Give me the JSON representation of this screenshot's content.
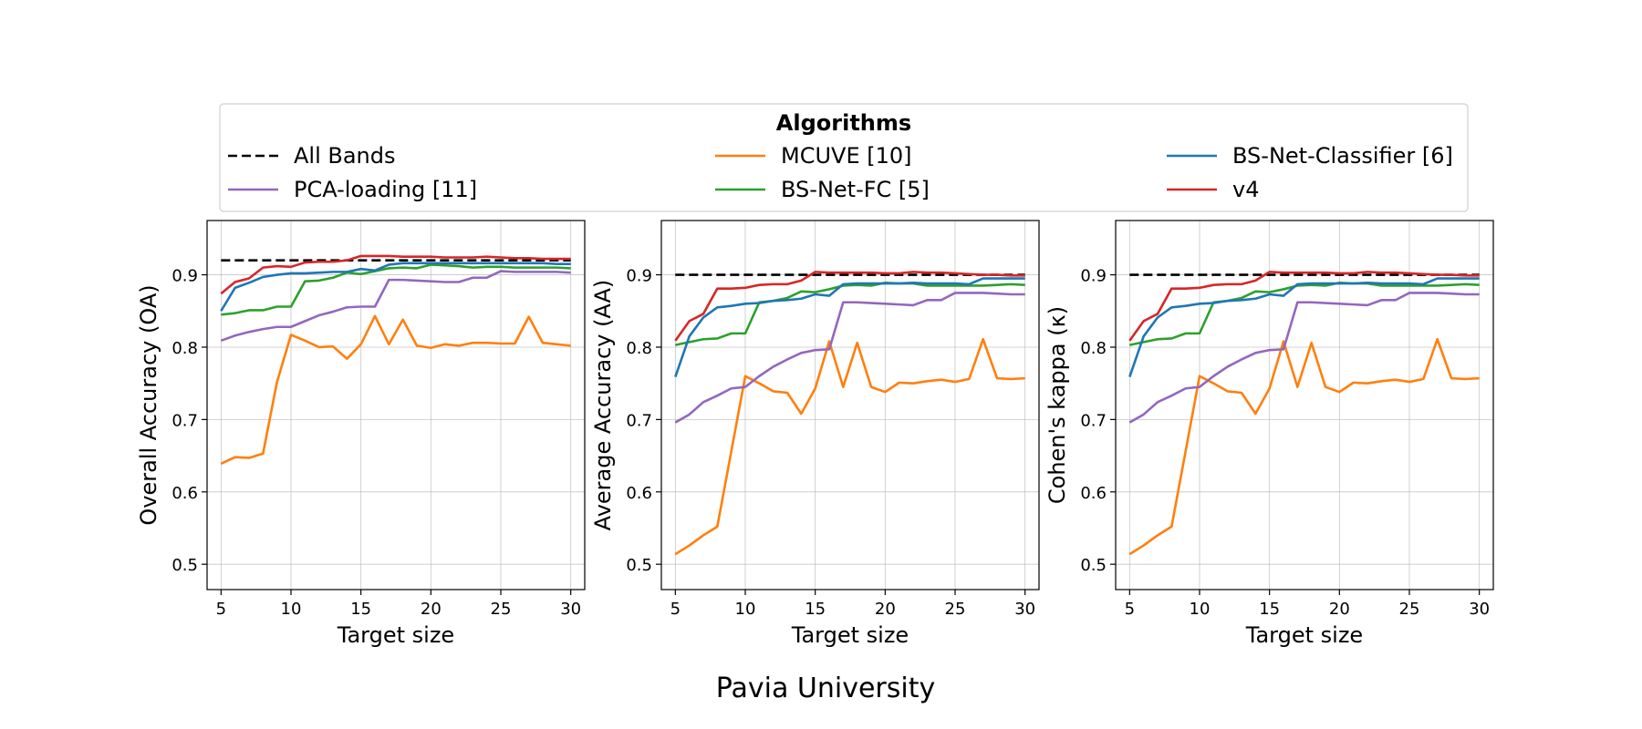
{
  "figure": {
    "suptitle": "Pavia University",
    "legend": {
      "title": "Algorithms",
      "entries": [
        {
          "name": "All Bands",
          "color": "#000000",
          "dashed": true
        },
        {
          "name": "MCUVE [10]",
          "color": "#ff7f0e",
          "dashed": false
        },
        {
          "name": "BS-Net-Classifier [6]",
          "color": "#1f77b4",
          "dashed": false
        },
        {
          "name": "PCA-loading [11]",
          "color": "#9467bd",
          "dashed": false
        },
        {
          "name": "BS-Net-FC [5]",
          "color": "#2ca02c",
          "dashed": false
        },
        {
          "name": "v4",
          "color": "#d62728",
          "dashed": false
        }
      ]
    }
  },
  "chart_data": [
    {
      "type": "line",
      "xlabel": "Target size",
      "ylabel": "Overall Accuracy (OA)",
      "xlim": [
        4,
        31
      ],
      "ylim": [
        0.465,
        0.975
      ],
      "xticks": [
        5,
        10,
        15,
        20,
        25,
        30
      ],
      "yticks": [
        0.5,
        0.6,
        0.7,
        0.8,
        0.9
      ],
      "grid": true,
      "x": [
        5,
        6,
        7,
        8,
        9,
        10,
        11,
        12,
        13,
        14,
        15,
        16,
        17,
        18,
        19,
        20,
        21,
        22,
        23,
        24,
        25,
        26,
        27,
        28,
        29,
        30
      ],
      "series": [
        {
          "name": "All Bands",
          "color": "#000000",
          "dashed": true,
          "values": [
            0.92,
            0.92,
            0.92,
            0.92,
            0.92,
            0.92,
            0.92,
            0.92,
            0.92,
            0.92,
            0.92,
            0.92,
            0.92,
            0.92,
            0.92,
            0.92,
            0.92,
            0.92,
            0.92,
            0.92,
            0.92,
            0.92,
            0.92,
            0.92,
            0.92,
            0.92
          ]
        },
        {
          "name": "MCUVE [10]",
          "color": "#ff7f0e",
          "values": [
            0.639,
            0.648,
            0.647,
            0.653,
            0.752,
            0.817,
            0.809,
            0.8,
            0.801,
            0.784,
            0.804,
            0.843,
            0.804,
            0.838,
            0.802,
            0.799,
            0.804,
            0.802,
            0.806,
            0.806,
            0.805,
            0.805,
            0.842,
            0.806,
            0.804,
            0.802
          ]
        },
        {
          "name": "PCA-loading [11]",
          "color": "#9467bd",
          "values": [
            0.809,
            0.816,
            0.821,
            0.825,
            0.828,
            0.828,
            0.836,
            0.844,
            0.849,
            0.855,
            0.856,
            0.856,
            0.893,
            0.893,
            0.892,
            0.891,
            0.89,
            0.89,
            0.896,
            0.896,
            0.905,
            0.904,
            0.904,
            0.904,
            0.904,
            0.903
          ]
        },
        {
          "name": "BS-Net-FC [5]",
          "color": "#2ca02c",
          "values": [
            0.845,
            0.847,
            0.851,
            0.851,
            0.856,
            0.856,
            0.891,
            0.892,
            0.896,
            0.903,
            0.901,
            0.905,
            0.909,
            0.91,
            0.909,
            0.914,
            0.913,
            0.912,
            0.91,
            0.911,
            0.911,
            0.91,
            0.91,
            0.91,
            0.91,
            0.909
          ]
        },
        {
          "name": "BS-Net-Classifier [6]",
          "color": "#1f77b4",
          "values": [
            0.85,
            0.882,
            0.889,
            0.897,
            0.9,
            0.902,
            0.902,
            0.903,
            0.904,
            0.904,
            0.908,
            0.906,
            0.914,
            0.916,
            0.916,
            0.916,
            0.916,
            0.916,
            0.916,
            0.916,
            0.916,
            0.916,
            0.916,
            0.916,
            0.915,
            0.915
          ]
        },
        {
          "name": "v4",
          "color": "#d62728",
          "values": [
            0.874,
            0.89,
            0.895,
            0.91,
            0.912,
            0.911,
            0.917,
            0.918,
            0.918,
            0.92,
            0.926,
            0.926,
            0.926,
            0.925,
            0.925,
            0.925,
            0.924,
            0.924,
            0.924,
            0.925,
            0.924,
            0.923,
            0.923,
            0.922,
            0.922,
            0.922
          ]
        }
      ]
    },
    {
      "type": "line",
      "xlabel": "Target size",
      "ylabel": "Average Accuracy (AA)",
      "xlim": [
        4,
        31
      ],
      "ylim": [
        0.465,
        0.975
      ],
      "xticks": [
        5,
        10,
        15,
        20,
        25,
        30
      ],
      "yticks": [
        0.5,
        0.6,
        0.7,
        0.8,
        0.9
      ],
      "grid": true,
      "x": [
        5,
        6,
        7,
        8,
        9,
        10,
        11,
        12,
        13,
        14,
        15,
        16,
        17,
        18,
        19,
        20,
        21,
        22,
        23,
        24,
        25,
        26,
        27,
        28,
        29,
        30
      ],
      "series": [
        {
          "name": "All Bands",
          "color": "#000000",
          "dashed": true,
          "values": [
            0.9,
            0.9,
            0.9,
            0.9,
            0.9,
            0.9,
            0.9,
            0.9,
            0.9,
            0.9,
            0.9,
            0.9,
            0.9,
            0.9,
            0.9,
            0.9,
            0.9,
            0.9,
            0.9,
            0.9,
            0.9,
            0.9,
            0.9,
            0.9,
            0.9,
            0.9
          ]
        },
        {
          "name": "MCUVE [10]",
          "color": "#ff7f0e",
          "values": [
            0.514,
            0.526,
            0.54,
            0.552,
            0.656,
            0.76,
            0.75,
            0.739,
            0.737,
            0.708,
            0.743,
            0.808,
            0.745,
            0.806,
            0.745,
            0.738,
            0.751,
            0.75,
            0.753,
            0.755,
            0.752,
            0.756,
            0.811,
            0.757,
            0.756,
            0.757
          ]
        },
        {
          "name": "PCA-loading [11]",
          "color": "#9467bd",
          "values": [
            0.696,
            0.707,
            0.724,
            0.733,
            0.743,
            0.745,
            0.76,
            0.773,
            0.783,
            0.792,
            0.796,
            0.797,
            0.862,
            0.862,
            0.861,
            0.86,
            0.859,
            0.858,
            0.865,
            0.865,
            0.875,
            0.875,
            0.875,
            0.874,
            0.873,
            0.873
          ]
        },
        {
          "name": "BS-Net-FC [5]",
          "color": "#2ca02c",
          "values": [
            0.803,
            0.807,
            0.811,
            0.812,
            0.819,
            0.819,
            0.862,
            0.864,
            0.868,
            0.877,
            0.876,
            0.88,
            0.885,
            0.886,
            0.885,
            0.889,
            0.888,
            0.888,
            0.885,
            0.885,
            0.885,
            0.885,
            0.885,
            0.886,
            0.887,
            0.886
          ]
        },
        {
          "name": "BS-Net-Classifier [6]",
          "color": "#1f77b4",
          "values": [
            0.759,
            0.815,
            0.841,
            0.855,
            0.857,
            0.86,
            0.861,
            0.864,
            0.865,
            0.867,
            0.873,
            0.871,
            0.887,
            0.888,
            0.888,
            0.888,
            0.888,
            0.889,
            0.888,
            0.888,
            0.888,
            0.887,
            0.895,
            0.895,
            0.895,
            0.895
          ]
        },
        {
          "name": "v4",
          "color": "#d62728",
          "values": [
            0.809,
            0.836,
            0.846,
            0.881,
            0.881,
            0.882,
            0.886,
            0.887,
            0.887,
            0.892,
            0.904,
            0.903,
            0.903,
            0.903,
            0.903,
            0.902,
            0.902,
            0.904,
            0.903,
            0.903,
            0.902,
            0.901,
            0.9,
            0.9,
            0.899,
            0.899
          ]
        }
      ]
    },
    {
      "type": "line",
      "xlabel": "Target size",
      "ylabel": "Cohen's kappa (κ)",
      "xlim": [
        4,
        31
      ],
      "ylim": [
        0.465,
        0.975
      ],
      "xticks": [
        5,
        10,
        15,
        20,
        25,
        30
      ],
      "yticks": [
        0.5,
        0.6,
        0.7,
        0.8,
        0.9
      ],
      "grid": true,
      "x": [
        5,
        6,
        7,
        8,
        9,
        10,
        11,
        12,
        13,
        14,
        15,
        16,
        17,
        18,
        19,
        20,
        21,
        22,
        23,
        24,
        25,
        26,
        27,
        28,
        29,
        30
      ],
      "series": [
        {
          "name": "All Bands",
          "color": "#000000",
          "dashed": true,
          "values": [
            0.9,
            0.9,
            0.9,
            0.9,
            0.9,
            0.9,
            0.9,
            0.9,
            0.9,
            0.9,
            0.9,
            0.9,
            0.9,
            0.9,
            0.9,
            0.9,
            0.9,
            0.9,
            0.9,
            0.9,
            0.9,
            0.9,
            0.9,
            0.9,
            0.9,
            0.9
          ]
        },
        {
          "name": "MCUVE [10]",
          "color": "#ff7f0e",
          "values": [
            0.514,
            0.526,
            0.54,
            0.552,
            0.656,
            0.76,
            0.75,
            0.739,
            0.737,
            0.708,
            0.743,
            0.808,
            0.745,
            0.806,
            0.745,
            0.738,
            0.751,
            0.75,
            0.753,
            0.755,
            0.752,
            0.756,
            0.811,
            0.757,
            0.756,
            0.757
          ]
        },
        {
          "name": "PCA-loading [11]",
          "color": "#9467bd",
          "values": [
            0.696,
            0.707,
            0.724,
            0.733,
            0.743,
            0.745,
            0.76,
            0.773,
            0.783,
            0.792,
            0.796,
            0.797,
            0.862,
            0.862,
            0.861,
            0.86,
            0.859,
            0.858,
            0.865,
            0.865,
            0.875,
            0.875,
            0.875,
            0.874,
            0.873,
            0.873
          ]
        },
        {
          "name": "BS-Net-FC [5]",
          "color": "#2ca02c",
          "values": [
            0.803,
            0.807,
            0.811,
            0.812,
            0.819,
            0.819,
            0.862,
            0.864,
            0.868,
            0.877,
            0.876,
            0.88,
            0.885,
            0.886,
            0.885,
            0.889,
            0.888,
            0.888,
            0.885,
            0.885,
            0.885,
            0.885,
            0.885,
            0.886,
            0.887,
            0.886
          ]
        },
        {
          "name": "BS-Net-Classifier [6]",
          "color": "#1f77b4",
          "values": [
            0.759,
            0.815,
            0.841,
            0.855,
            0.857,
            0.86,
            0.861,
            0.864,
            0.865,
            0.867,
            0.873,
            0.871,
            0.887,
            0.888,
            0.888,
            0.888,
            0.888,
            0.889,
            0.888,
            0.888,
            0.888,
            0.887,
            0.895,
            0.895,
            0.895,
            0.895
          ]
        },
        {
          "name": "v4",
          "color": "#d62728",
          "values": [
            0.809,
            0.836,
            0.846,
            0.881,
            0.881,
            0.882,
            0.886,
            0.887,
            0.887,
            0.892,
            0.904,
            0.903,
            0.903,
            0.903,
            0.903,
            0.902,
            0.902,
            0.904,
            0.903,
            0.903,
            0.902,
            0.901,
            0.9,
            0.9,
            0.899,
            0.899
          ]
        }
      ]
    }
  ]
}
